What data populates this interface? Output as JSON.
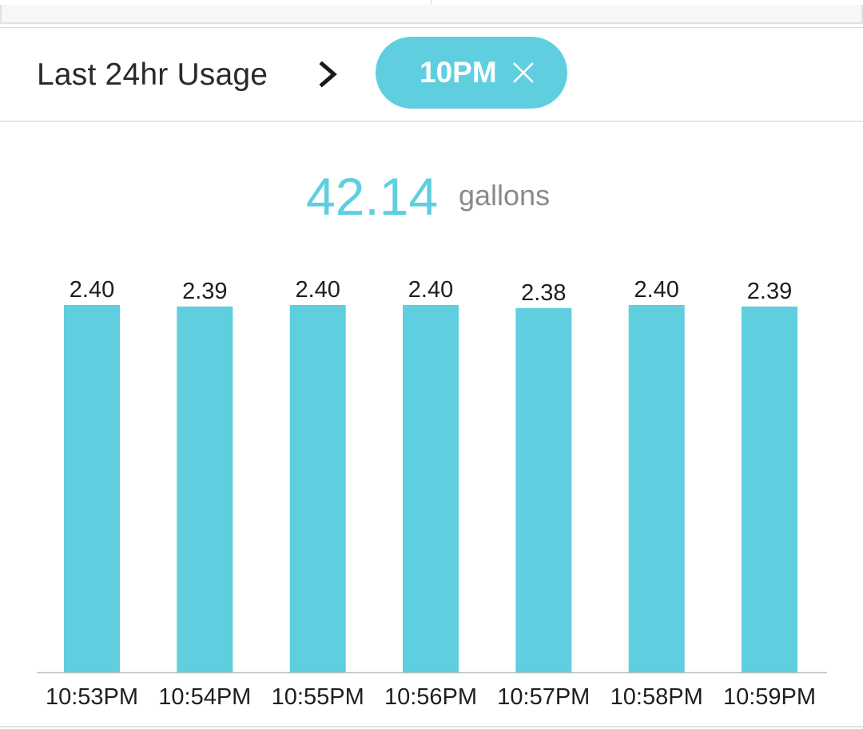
{
  "header": {
    "title": "Last 24hr Usage",
    "filter_label": "10PM",
    "chevron_icon": "chevron-right-icon",
    "close_icon": "close-icon"
  },
  "total": {
    "value": "42.14",
    "unit": "gallons"
  },
  "colors": {
    "accent": "#5fcfe0",
    "text_dark": "#2a2a2a",
    "text_muted": "#8a8a8a",
    "axis": "#bdbdbd"
  },
  "chart_data": {
    "type": "bar",
    "categories": [
      "10:53PM",
      "10:54PM",
      "10:55PM",
      "10:56PM",
      "10:57PM",
      "10:58PM",
      "10:59PM"
    ],
    "values": [
      2.4,
      2.39,
      2.4,
      2.4,
      2.38,
      2.4,
      2.39
    ],
    "data_labels": [
      "2.40",
      "2.39",
      "2.40",
      "2.40",
      "2.38",
      "2.40",
      "2.39"
    ],
    "title": "",
    "xlabel": "",
    "ylabel": "",
    "grid": false,
    "legend": "none"
  }
}
